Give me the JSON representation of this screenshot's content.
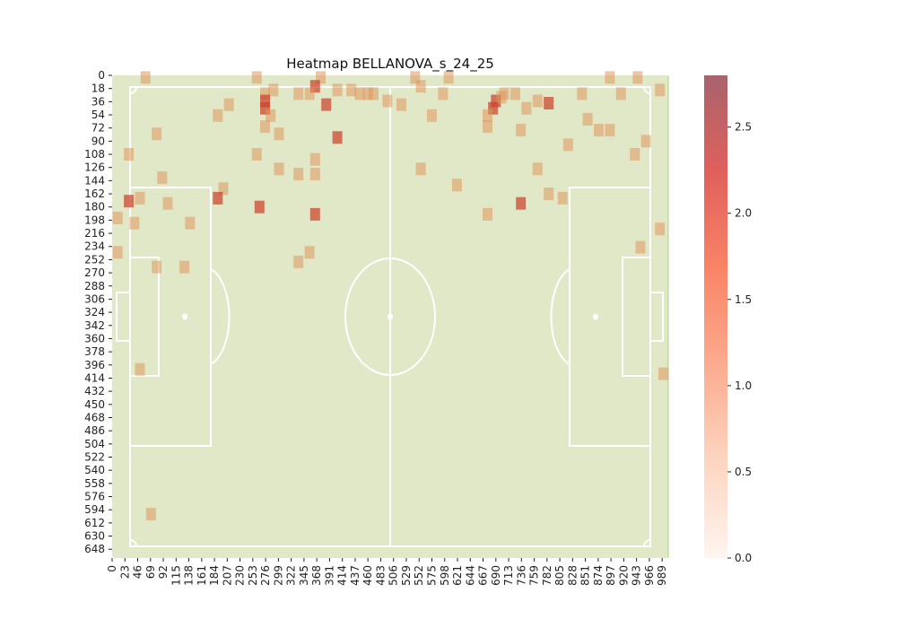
{
  "chart_data": {
    "type": "heatmap",
    "title": "Heatmap BELLANOVA_s_24_25",
    "xlabel": "",
    "ylabel": "",
    "xlim": [
      0,
      1000
    ],
    "ylim": [
      0,
      660
    ],
    "x_ticks": [
      0,
      23,
      46,
      69,
      92,
      115,
      138,
      161,
      184,
      207,
      230,
      253,
      276,
      299,
      322,
      345,
      368,
      391,
      414,
      437,
      460,
      483,
      506,
      529,
      552,
      575,
      598,
      621,
      644,
      667,
      690,
      713,
      736,
      759,
      782,
      805,
      828,
      851,
      874,
      897,
      920,
      943,
      966,
      989
    ],
    "y_ticks": [
      0,
      18,
      36,
      54,
      72,
      90,
      108,
      126,
      144,
      162,
      180,
      198,
      216,
      234,
      252,
      270,
      288,
      306,
      324,
      342,
      360,
      378,
      396,
      414,
      432,
      450,
      468,
      486,
      504,
      522,
      540,
      558,
      576,
      594,
      612,
      630,
      648
    ],
    "colorbar": {
      "min": 0,
      "max": 2.8,
      "ticks": [
        0.0,
        0.5,
        1.0,
        1.5,
        2.0,
        2.5
      ],
      "tick_labels": [
        "0.0",
        "0.5",
        "1.0",
        "1.5",
        "2.0",
        "2.5"
      ],
      "colors": [
        "#fff5f0",
        "#fdd5c0",
        "#fcab8f",
        "#f98466",
        "#e0605c",
        "#a9636d"
      ]
    },
    "pitch": {
      "grass_color": "#e1e8c7",
      "line_color": "#ffffff"
    },
    "points": [
      {
        "x": 60,
        "y": 3,
        "v": 1
      },
      {
        "x": 260,
        "y": 3,
        "v": 1
      },
      {
        "x": 375,
        "y": 3,
        "v": 1
      },
      {
        "x": 545,
        "y": 3,
        "v": 1
      },
      {
        "x": 605,
        "y": 3,
        "v": 1
      },
      {
        "x": 895,
        "y": 3,
        "v": 1
      },
      {
        "x": 945,
        "y": 3,
        "v": 1
      },
      {
        "x": 555,
        "y": 15,
        "v": 1
      },
      {
        "x": 365,
        "y": 15,
        "v": 2
      },
      {
        "x": 985,
        "y": 20,
        "v": 1
      },
      {
        "x": 290,
        "y": 20,
        "v": 1
      },
      {
        "x": 405,
        "y": 20,
        "v": 1
      },
      {
        "x": 430,
        "y": 20,
        "v": 1
      },
      {
        "x": 275,
        "y": 25,
        "v": 1
      },
      {
        "x": 335,
        "y": 25,
        "v": 1
      },
      {
        "x": 355,
        "y": 25,
        "v": 1
      },
      {
        "x": 445,
        "y": 25,
        "v": 1
      },
      {
        "x": 460,
        "y": 25,
        "v": 1
      },
      {
        "x": 470,
        "y": 25,
        "v": 1
      },
      {
        "x": 595,
        "y": 25,
        "v": 1
      },
      {
        "x": 705,
        "y": 25,
        "v": 1
      },
      {
        "x": 725,
        "y": 25,
        "v": 1
      },
      {
        "x": 845,
        "y": 25,
        "v": 1
      },
      {
        "x": 915,
        "y": 25,
        "v": 1
      },
      {
        "x": 275,
        "y": 35,
        "v": 2
      },
      {
        "x": 690,
        "y": 35,
        "v": 2
      },
      {
        "x": 700,
        "y": 30,
        "v": 1
      },
      {
        "x": 495,
        "y": 35,
        "v": 1
      },
      {
        "x": 765,
        "y": 35,
        "v": 1
      },
      {
        "x": 785,
        "y": 38,
        "v": 2
      },
      {
        "x": 520,
        "y": 40,
        "v": 1
      },
      {
        "x": 210,
        "y": 40,
        "v": 1
      },
      {
        "x": 385,
        "y": 40,
        "v": 2
      },
      {
        "x": 275,
        "y": 45,
        "v": 2
      },
      {
        "x": 685,
        "y": 45,
        "v": 2
      },
      {
        "x": 745,
        "y": 45,
        "v": 1
      },
      {
        "x": 285,
        "y": 55,
        "v": 1
      },
      {
        "x": 190,
        "y": 55,
        "v": 1
      },
      {
        "x": 575,
        "y": 55,
        "v": 1
      },
      {
        "x": 675,
        "y": 55,
        "v": 1
      },
      {
        "x": 855,
        "y": 60,
        "v": 1
      },
      {
        "x": 275,
        "y": 70,
        "v": 1
      },
      {
        "x": 675,
        "y": 70,
        "v": 1
      },
      {
        "x": 735,
        "y": 75,
        "v": 1
      },
      {
        "x": 875,
        "y": 75,
        "v": 1
      },
      {
        "x": 895,
        "y": 75,
        "v": 1
      },
      {
        "x": 80,
        "y": 80,
        "v": 1
      },
      {
        "x": 300,
        "y": 80,
        "v": 1
      },
      {
        "x": 405,
        "y": 85,
        "v": 2
      },
      {
        "x": 960,
        "y": 90,
        "v": 1
      },
      {
        "x": 820,
        "y": 95,
        "v": 1
      },
      {
        "x": 30,
        "y": 108,
        "v": 1
      },
      {
        "x": 260,
        "y": 108,
        "v": 1
      },
      {
        "x": 365,
        "y": 115,
        "v": 1
      },
      {
        "x": 940,
        "y": 108,
        "v": 1
      },
      {
        "x": 300,
        "y": 128,
        "v": 1
      },
      {
        "x": 555,
        "y": 128,
        "v": 1
      },
      {
        "x": 765,
        "y": 128,
        "v": 1
      },
      {
        "x": 335,
        "y": 135,
        "v": 1
      },
      {
        "x": 365,
        "y": 135,
        "v": 1
      },
      {
        "x": 90,
        "y": 140,
        "v": 1
      },
      {
        "x": 620,
        "y": 150,
        "v": 1
      },
      {
        "x": 200,
        "y": 155,
        "v": 1
      },
      {
        "x": 190,
        "y": 168,
        "v": 2
      },
      {
        "x": 30,
        "y": 172,
        "v": 2
      },
      {
        "x": 50,
        "y": 168,
        "v": 1
      },
      {
        "x": 100,
        "y": 175,
        "v": 1
      },
      {
        "x": 785,
        "y": 162,
        "v": 1
      },
      {
        "x": 810,
        "y": 168,
        "v": 1
      },
      {
        "x": 265,
        "y": 180,
        "v": 2
      },
      {
        "x": 735,
        "y": 175,
        "v": 2
      },
      {
        "x": 365,
        "y": 190,
        "v": 2
      },
      {
        "x": 675,
        "y": 190,
        "v": 1
      },
      {
        "x": 10,
        "y": 195,
        "v": 1
      },
      {
        "x": 40,
        "y": 202,
        "v": 1
      },
      {
        "x": 140,
        "y": 202,
        "v": 1
      },
      {
        "x": 985,
        "y": 210,
        "v": 1
      },
      {
        "x": 10,
        "y": 242,
        "v": 1
      },
      {
        "x": 355,
        "y": 242,
        "v": 1
      },
      {
        "x": 950,
        "y": 235,
        "v": 1
      },
      {
        "x": 335,
        "y": 255,
        "v": 1
      },
      {
        "x": 80,
        "y": 262,
        "v": 1
      },
      {
        "x": 130,
        "y": 262,
        "v": 1
      },
      {
        "x": 50,
        "y": 402,
        "v": 1
      },
      {
        "x": 1005,
        "y": 408,
        "v": 1
      },
      {
        "x": 70,
        "y": 600,
        "v": 1
      }
    ]
  }
}
